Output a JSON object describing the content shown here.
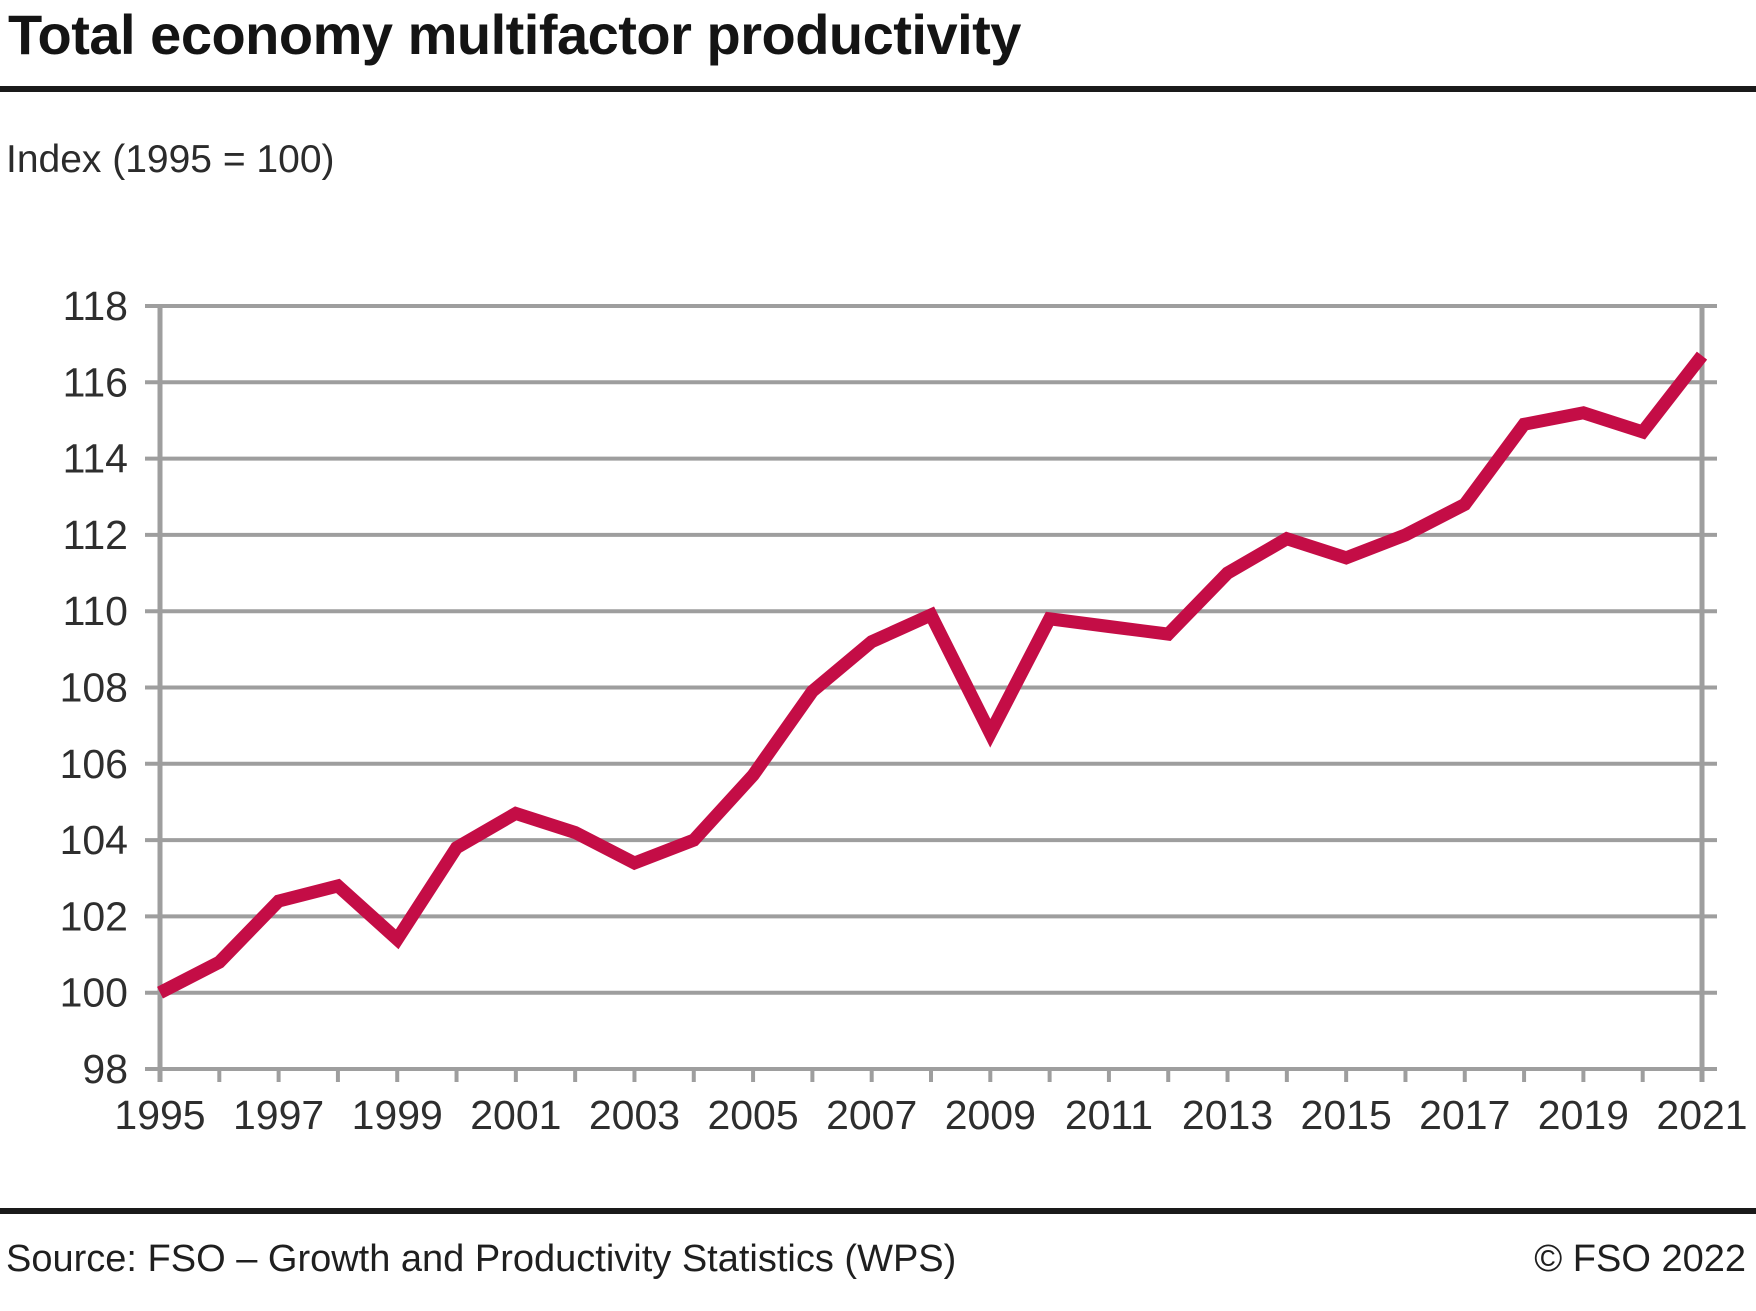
{
  "header": {
    "title": "Total economy multifactor productivity",
    "subtitle": "Index (1995 = 100)"
  },
  "footer": {
    "source": "Source: FSO – Growth and Productivity Statistics (WPS)",
    "copyright": "© FSO 2022"
  },
  "chart_data": {
    "type": "line",
    "title": "Total economy multifactor productivity",
    "ylabel": "Index (1995 = 100)",
    "xlabel": "",
    "x": [
      1995,
      1996,
      1997,
      1998,
      1999,
      2000,
      2001,
      2002,
      2003,
      2004,
      2005,
      2006,
      2007,
      2008,
      2009,
      2010,
      2011,
      2012,
      2013,
      2014,
      2015,
      2016,
      2017,
      2018,
      2019,
      2020,
      2021
    ],
    "series": [
      {
        "name": "Total economy multifactor productivity",
        "values": [
          100.0,
          100.8,
          102.4,
          102.8,
          101.4,
          103.8,
          104.7,
          104.2,
          103.4,
          104.0,
          105.7,
          107.9,
          109.2,
          109.9,
          106.8,
          109.8,
          109.6,
          109.4,
          111.0,
          111.9,
          111.4,
          112.0,
          112.8,
          114.9,
          115.2,
          114.7,
          116.7
        ]
      }
    ],
    "ylim": [
      98,
      118
    ],
    "ytick_step": 2,
    "xtick_labels": [
      "1995",
      "1997",
      "1999",
      "2001",
      "2003",
      "2005",
      "2007",
      "2009",
      "2011",
      "2013",
      "2015",
      "2017",
      "2019",
      "2021"
    ],
    "grid": true,
    "legend_position": "none",
    "line_color": "#c40d46",
    "grid_color": "#9e9e9e",
    "tick_label_color": "#2e2e2e"
  }
}
